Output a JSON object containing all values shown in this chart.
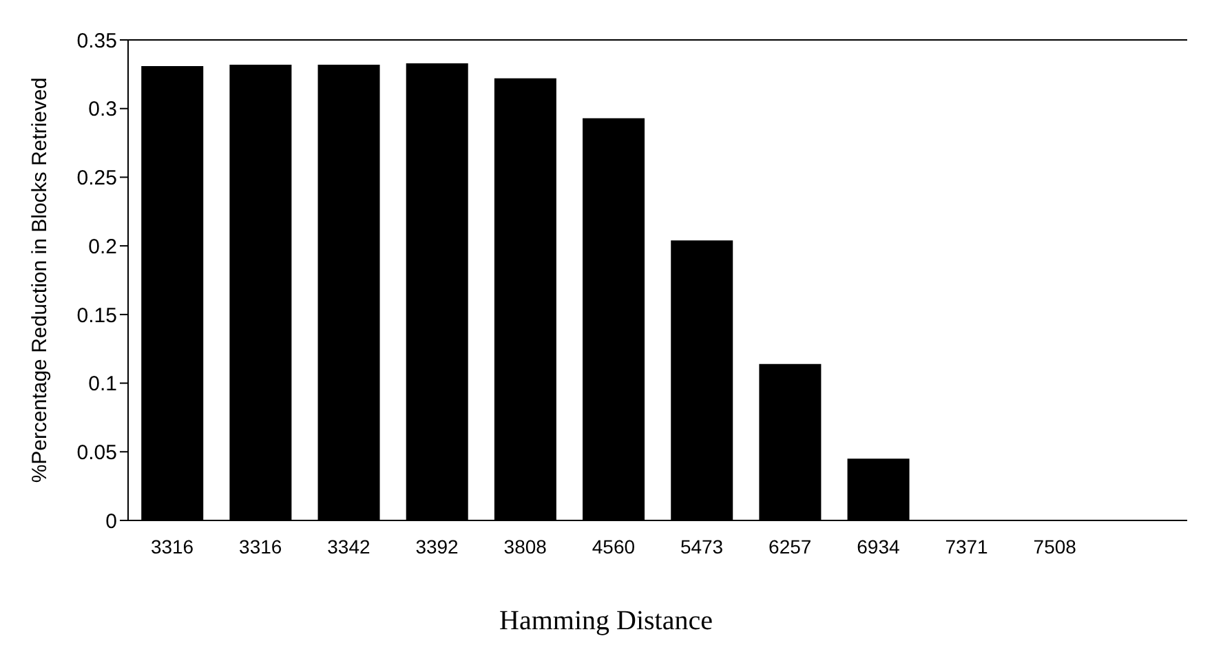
{
  "chart_data": {
    "type": "bar",
    "xlabel": "Hamming Distance",
    "ylabel": "%Percentage Reduction in Blocks Retrieved",
    "categories": [
      "3316",
      "3316",
      "3342",
      "3392",
      "3808",
      "4560",
      "5473",
      "6257",
      "6934",
      "7371",
      "7508",
      null
    ],
    "values": [
      0.331,
      0.332,
      0.332,
      0.333,
      0.322,
      0.293,
      0.204,
      0.114,
      0.045,
      0,
      0,
      null
    ],
    "color": "#000000",
    "ylim": [
      0,
      0.35
    ],
    "yticks": [
      0,
      0.05,
      0.1,
      0.15,
      0.2,
      0.25,
      0.3,
      0.35
    ],
    "grid": false
  }
}
